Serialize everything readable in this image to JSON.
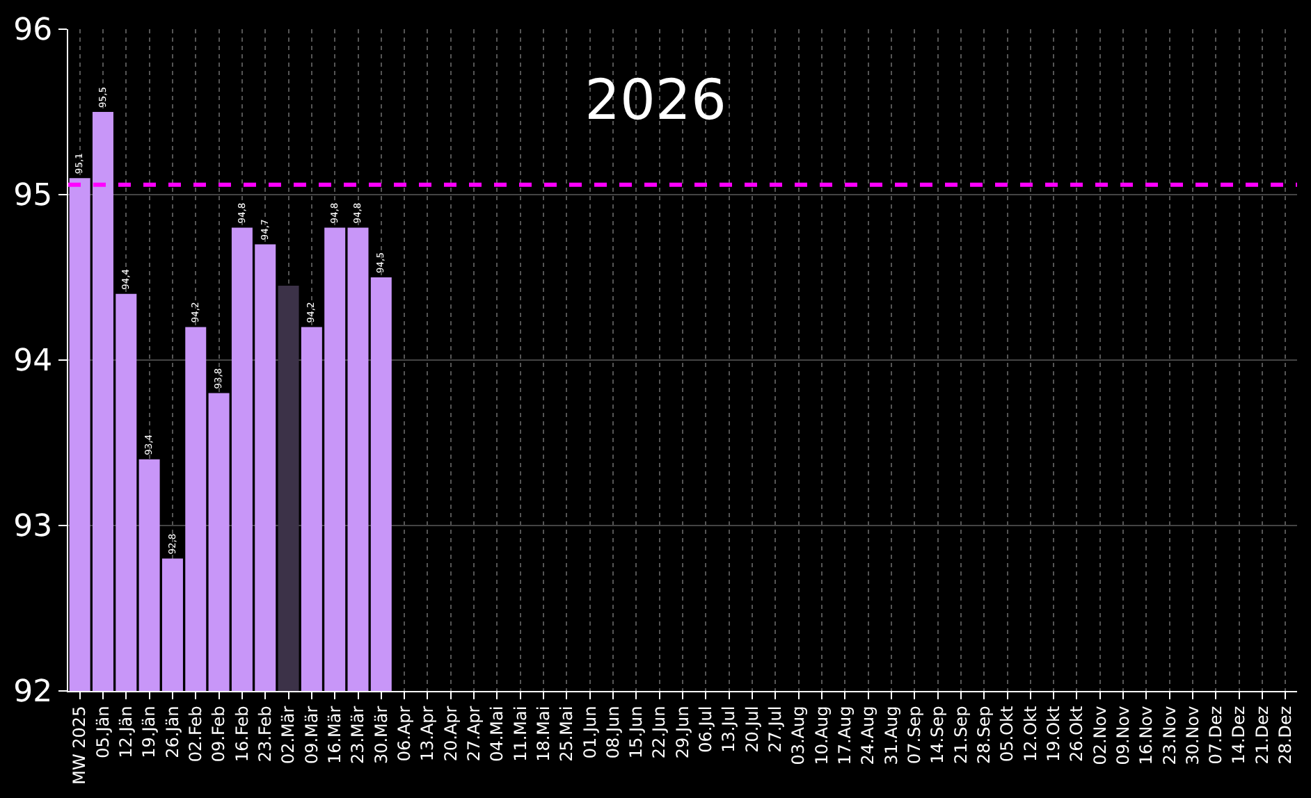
{
  "chart_data": {
    "type": "bar",
    "title": "2026",
    "categories": [
      "MW 2025",
      "05.Jän",
      "12.Jän",
      "19.Jän",
      "26.Jän",
      "02.Feb",
      "09.Feb",
      "16.Feb",
      "23.Feb",
      "02.Mär",
      "09.Mär",
      "16.Mär",
      "23.Mär",
      "30.Mär",
      "06.Apr",
      "13.Apr",
      "20.Apr",
      "27.Apr",
      "04.Mai",
      "11.Mai",
      "18.Mai",
      "25.Mai",
      "01.Jun",
      "08.Jun",
      "15.Jun",
      "22.Jun",
      "29.Jun",
      "06.Jul",
      "13.Jul",
      "20.Jul",
      "27.Jul",
      "03.Aug",
      "10.Aug",
      "17.Aug",
      "24.Aug",
      "31.Aug",
      "07.Sep",
      "14.Sep",
      "21.Sep",
      "28.Sep",
      "05.Okt",
      "12.Okt",
      "19.Okt",
      "26.Okt",
      "02.Nov",
      "09.Nov",
      "16.Nov",
      "23.Nov",
      "30.Nov",
      "07.Dez",
      "14.Dez",
      "21.Dez",
      "28.Dez"
    ],
    "values": [
      95.1,
      95.5,
      94.4,
      93.4,
      92.8,
      94.2,
      93.8,
      94.8,
      94.7,
      94.45,
      94.2,
      94.8,
      94.8,
      94.5,
      null,
      null,
      null,
      null,
      null,
      null,
      null,
      null,
      null,
      null,
      null,
      null,
      null,
      null,
      null,
      null,
      null,
      null,
      null,
      null,
      null,
      null,
      null,
      null,
      null,
      null,
      null,
      null,
      null,
      null,
      null,
      null,
      null,
      null,
      null,
      null,
      null,
      null,
      null
    ],
    "value_labels": [
      "95,1",
      "95,5",
      "94,4",
      "93,4",
      "92,8",
      "94,2",
      "93,8",
      "94,8",
      "94,7",
      null,
      "94,2",
      "94,8",
      "94,8",
      "94,5",
      null,
      null,
      null,
      null,
      null,
      null,
      null,
      null,
      null,
      null,
      null,
      null,
      null,
      null,
      null,
      null,
      null,
      null,
      null,
      null,
      null,
      null,
      null,
      null,
      null,
      null,
      null,
      null,
      null,
      null,
      null,
      null,
      null,
      null,
      null,
      null,
      null,
      null,
      null
    ],
    "colors": [
      "#c896f8",
      "#c896f8",
      "#c896f8",
      "#c896f8",
      "#c896f8",
      "#c896f8",
      "#c896f8",
      "#c896f8",
      "#c896f8",
      "#3c3248",
      "#c896f8",
      "#c896f8",
      "#c896f8",
      "#c896f8",
      "#c896f8",
      "#c896f8",
      "#c896f8",
      "#c896f8",
      "#c896f8",
      "#c896f8",
      "#c896f8",
      "#c896f8",
      "#c896f8",
      "#c896f8",
      "#c896f8",
      "#c896f8",
      "#c896f8",
      "#c896f8",
      "#c896f8",
      "#c896f8",
      "#c896f8",
      "#c896f8",
      "#c896f8",
      "#c896f8",
      "#c896f8",
      "#c896f8",
      "#c896f8",
      "#c896f8",
      "#c896f8",
      "#c896f8",
      "#c896f8",
      "#c896f8",
      "#c896f8",
      "#c896f8",
      "#c896f8",
      "#c896f8",
      "#c896f8",
      "#c896f8",
      "#c896f8",
      "#c896f8",
      "#c896f8",
      "#c896f8",
      "#c896f8"
    ],
    "ylim": [
      92,
      96
    ],
    "yticks": [
      92,
      93,
      94,
      95,
      96
    ],
    "grid": true,
    "ref_lines": [
      {
        "axis": "y",
        "value": 95.06,
        "color": "#ff00ff",
        "line_style": "dashed"
      }
    ]
  }
}
